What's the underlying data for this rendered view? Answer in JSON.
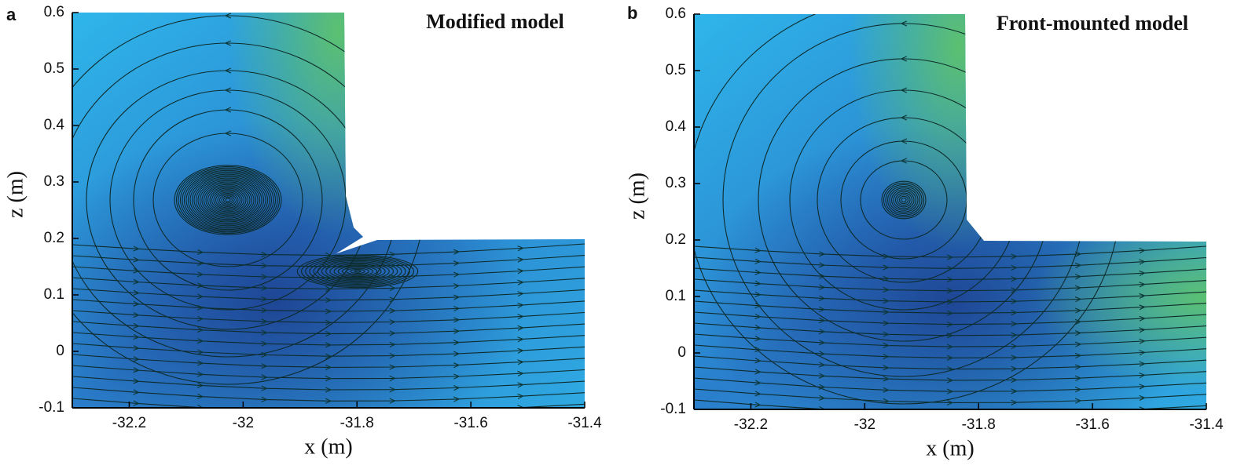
{
  "chart_data": [
    {
      "type": "streamline",
      "panel_label": "a",
      "title": "Modified model",
      "x_label": "x (m)",
      "y_label": "z (m)",
      "xlim": [
        -32.3,
        -31.4
      ],
      "ylim": [
        -0.1,
        0.6
      ],
      "xticks": [
        -32.2,
        -32,
        -31.8,
        -31.6,
        -31.4
      ],
      "yticks": [
        -0.1,
        0,
        0.1,
        0.2,
        0.3,
        0.4,
        0.5,
        0.6
      ]
    },
    {
      "type": "streamline",
      "panel_label": "b",
      "title": "Front-mounted model",
      "x_label": "x (m)",
      "y_label": "z (m)",
      "xlim": [
        -32.3,
        -31.4
      ],
      "ylim": [
        -0.1,
        0.6
      ],
      "xticks": [
        -32.2,
        -32,
        -31.8,
        -31.6,
        -31.4
      ],
      "yticks": [
        -0.1,
        0,
        0.1,
        0.2,
        0.3,
        0.4,
        0.5,
        0.6
      ]
    }
  ]
}
